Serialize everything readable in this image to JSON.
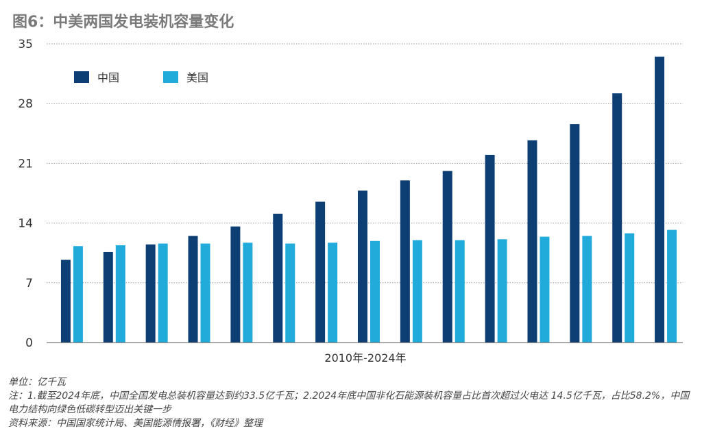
{
  "title": "图6：中美两国发电装机容量变化",
  "colors": {
    "china": "#0d3f74",
    "usa": "#21abdb",
    "grid": "#9a9a9a",
    "axis": "#333333"
  },
  "chart_data": {
    "type": "bar",
    "xlabel": "2010年-2024年",
    "ylabel": "",
    "ylim": [
      0,
      35
    ],
    "yticks": [
      0,
      7,
      14,
      21,
      28,
      35
    ],
    "grid": true,
    "legend_position": "top-left",
    "categories": [
      "",
      "",
      "",
      "",
      "",
      "",
      "",
      "",
      "",
      "",
      "",
      "",
      "",
      "",
      ""
    ],
    "series": [
      {
        "name": "中国",
        "values": [
          9.7,
          10.6,
          11.5,
          12.5,
          13.6,
          15.1,
          16.5,
          17.8,
          19.0,
          20.1,
          22.0,
          23.7,
          25.6,
          29.2,
          33.5
        ]
      },
      {
        "name": "美国",
        "values": [
          11.3,
          11.4,
          11.6,
          11.6,
          11.7,
          11.6,
          11.7,
          11.9,
          12.0,
          12.0,
          12.1,
          12.4,
          12.5,
          12.8,
          13.2
        ]
      }
    ]
  },
  "footnotes": {
    "unit": "单位：亿千瓦",
    "note": "注：1.截至2024年底，中国全国发电总装机容量达到约33.5亿千瓦；2.2024年底中国非化石能源装机容量占比首次超过火电达 14.5亿千瓦，占比58.2%，中国电力结构向绿色低碳转型迈出关键一步",
    "source": "资料来源：中国国家统计局、美国能源情报署，《财经》整理"
  }
}
